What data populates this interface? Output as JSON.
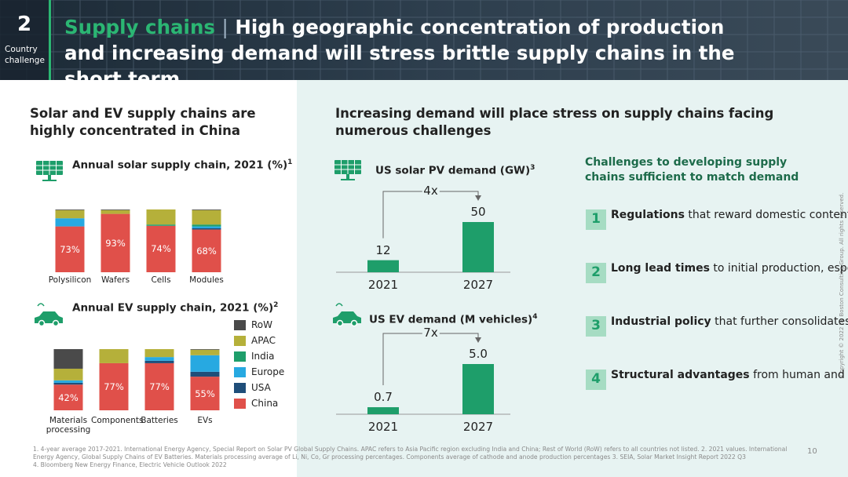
{
  "header": {
    "number": "2",
    "label": "Country challenge",
    "title_highlight": "Supply chains",
    "separator": "|",
    "title": "High geographic concentration of production and increasing demand will stress brittle supply chains in the short term"
  },
  "left_heading": "Solar and EV supply chains are highly concentrated in China",
  "right_heading": "Increasing demand will place stress on supply chains facing numerous challenges",
  "chart_data": [
    {
      "type": "stacked_bar",
      "title": "Annual solar supply chain, 2021 (%)",
      "title_note": "1",
      "categories": [
        "Polysilicon",
        "Wafers",
        "Cells",
        "Modules"
      ],
      "series": [
        {
          "color": "#e0504a",
          "values": [
            73,
            93,
            74,
            68
          ],
          "value_labels": [
            "73%",
            "93%",
            "74%",
            "68%"
          ]
        },
        {
          "color": "#1f4e79",
          "values": [
            0,
            0,
            0,
            2
          ]
        },
        {
          "color": "#27a9e1",
          "values": [
            13,
            0,
            0,
            3
          ]
        },
        {
          "color": "#1e9e6a",
          "values": [
            0,
            0,
            2,
            3
          ]
        },
        {
          "color": "#b5b03a",
          "values": [
            13,
            6,
            24,
            23
          ]
        },
        {
          "color": "#4a4a4a",
          "values": [
            1,
            1,
            0,
            1
          ]
        }
      ]
    },
    {
      "type": "stacked_bar",
      "title": "Annual EV supply chain, 2021 (%)",
      "title_note": "2",
      "categories": [
        "Materials processing",
        "Components",
        "Batteries",
        "EVs"
      ],
      "series": [
        {
          "name": "China",
          "color": "#e0504a",
          "values": [
            42,
            77,
            77,
            55
          ],
          "value_labels": [
            "42%",
            "77%",
            "77%",
            "55%"
          ]
        },
        {
          "name": "USA",
          "color": "#1f4e79",
          "values": [
            3,
            0,
            4,
            8
          ]
        },
        {
          "name": "Europe",
          "color": "#27a9e1",
          "values": [
            4,
            0,
            6,
            27
          ]
        },
        {
          "name": "India",
          "color": "#1e9e6a",
          "values": [
            0,
            0,
            0,
            0
          ]
        },
        {
          "name": "APAC",
          "color": "#b5b03a",
          "values": [
            19,
            23,
            13,
            9
          ]
        },
        {
          "name": "RoW",
          "color": "#4a4a4a",
          "values": [
            32,
            0,
            0,
            1
          ]
        }
      ]
    },
    {
      "type": "bar",
      "title": "US solar PV demand (GW)",
      "title_note": "3",
      "categories": [
        "2021",
        "2027"
      ],
      "values": [
        12,
        50
      ],
      "color": "#1e9e6a",
      "annotation": "4x"
    },
    {
      "type": "bar",
      "title": "US EV demand (M vehicles)",
      "title_note": "4",
      "categories": [
        "2021",
        "2027"
      ],
      "values": [
        0.7,
        5
      ],
      "value_labels": [
        "0.7",
        "5.0"
      ],
      "color": "#1e9e6a",
      "annotation": "7x"
    }
  ],
  "challenges": {
    "title": "Challenges to developing supply chains sufficient to match demand",
    "items": [
      {
        "number": "1",
        "bold": "Regulations",
        "text": " that reward domestic content and will restrict products from countries of concern"
      },
      {
        "number": "2",
        "bold": "Long lead times",
        "text": " to initial production, especially for EV batteries and materials"
      },
      {
        "number": "3",
        "bold": "Industrial policy",
        "text": " that further consolidates supply chains"
      },
      {
        "number": "4",
        "bold": "Structural advantages",
        "text": " from human and knowledge capital in legacy regions"
      }
    ]
  },
  "footnotes": [
    "1. 4-year average 2017-2021. International Energy Agency, Special Report on Solar PV Global Supply Chains. APAC refers to Asia Pacific region excluding India and China; Rest of World (RoW) refers to all countries not listed. 2. 2021 values. International Energy Agency, Global Supply Chains of EV Batteries. Materials processing average of Li, Ni, Co, Gr processing percentages. Components average of cathode and anode production percentages  3. SEIA, Solar Market Insight Report 2022 Q3",
    "4. Bloomberg New Energy Finance, Electric Vehicle Outlook 2022"
  ],
  "page_number": "10",
  "copyright": "Copyright © 2022 by Boston Consulting Group. All rights reserved."
}
